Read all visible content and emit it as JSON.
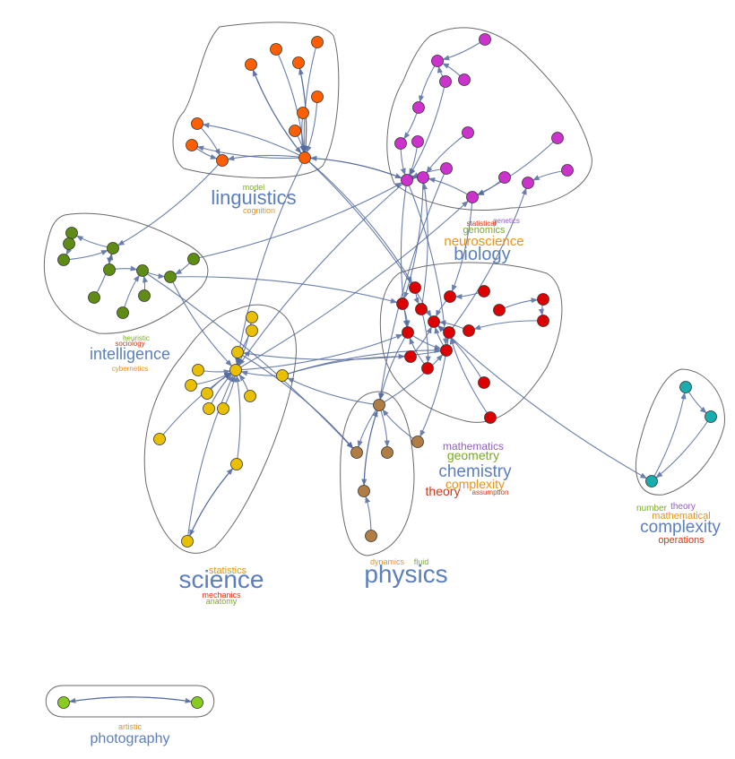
{
  "colors": {
    "linguistics": "#ff5f00",
    "biology": "#cc33cc",
    "intelligence": "#5e8c14",
    "science": "#e8c000",
    "chemistry": "#dd0000",
    "physics": "#b07d44",
    "complexity": "#1aadad",
    "photography": "#88cc22",
    "edge": "#52699e",
    "word_blue": "#5b7fbe",
    "word_orange": "#e8921a",
    "word_green": "#7aab22",
    "word_red": "#dd3311",
    "word_purple": "#8f5fbf"
  },
  "clusters": [
    {
      "id": "linguistics",
      "words": [
        {
          "text": "linguistics",
          "color": "word_blue",
          "size": 22
        },
        {
          "text": "model",
          "color": "word_green",
          "size": 9
        },
        {
          "text": "cognition",
          "color": "word_orange",
          "size": 9
        }
      ]
    },
    {
      "id": "biology",
      "words": [
        {
          "text": "genetics",
          "color": "word_purple",
          "size": 8
        },
        {
          "text": "statistical",
          "color": "word_red",
          "size": 8
        },
        {
          "text": "genomics",
          "color": "word_green",
          "size": 11
        },
        {
          "text": "neuroscience",
          "color": "word_orange",
          "size": 15
        },
        {
          "text": "biology",
          "color": "word_blue",
          "size": 20
        }
      ]
    },
    {
      "id": "intelligence",
      "words": [
        {
          "text": "heuristic",
          "color": "word_green",
          "size": 8
        },
        {
          "text": "sociology",
          "color": "word_red",
          "size": 8
        },
        {
          "text": "intelligence",
          "color": "word_blue",
          "size": 18
        },
        {
          "text": "cybernetics",
          "color": "word_orange",
          "size": 8
        }
      ]
    },
    {
      "id": "science",
      "words": [
        {
          "text": "statistics",
          "color": "word_orange",
          "size": 11
        },
        {
          "text": "science",
          "color": "word_blue",
          "size": 28
        },
        {
          "text": "mechanics",
          "color": "word_red",
          "size": 9
        },
        {
          "text": "anatomy",
          "color": "word_green",
          "size": 9
        }
      ]
    },
    {
      "id": "physics",
      "words": [
        {
          "text": "dynamics",
          "color": "word_orange",
          "size": 9
        },
        {
          "text": "fluid",
          "color": "word_green",
          "size": 9
        },
        {
          "text": "physics",
          "color": "word_blue",
          "size": 28
        }
      ]
    },
    {
      "id": "chemistry",
      "words": [
        {
          "text": "mathematics",
          "color": "word_purple",
          "size": 12
        },
        {
          "text": "geometry",
          "color": "word_green",
          "size": 14
        },
        {
          "text": "chemistry",
          "color": "word_blue",
          "size": 19
        },
        {
          "text": "complexity",
          "color": "word_orange",
          "size": 14
        },
        {
          "text": "theory",
          "color": "word_red",
          "size": 14
        },
        {
          "text": "assumption",
          "color": "word_red",
          "size": 8
        }
      ]
    },
    {
      "id": "complexity",
      "words": [
        {
          "text": "number",
          "color": "word_green",
          "size": 10
        },
        {
          "text": "theory",
          "color": "word_purple",
          "size": 10
        },
        {
          "text": "mathematical",
          "color": "word_orange",
          "size": 11
        },
        {
          "text": "complexity",
          "color": "word_blue",
          "size": 19
        },
        {
          "text": "operations",
          "color": "word_red",
          "size": 11
        }
      ]
    },
    {
      "id": "photography",
      "words": [
        {
          "text": "artistic",
          "color": "word_orange",
          "size": 9
        },
        {
          "text": "photography",
          "color": "word_blue",
          "size": 16
        }
      ]
    }
  ]
}
